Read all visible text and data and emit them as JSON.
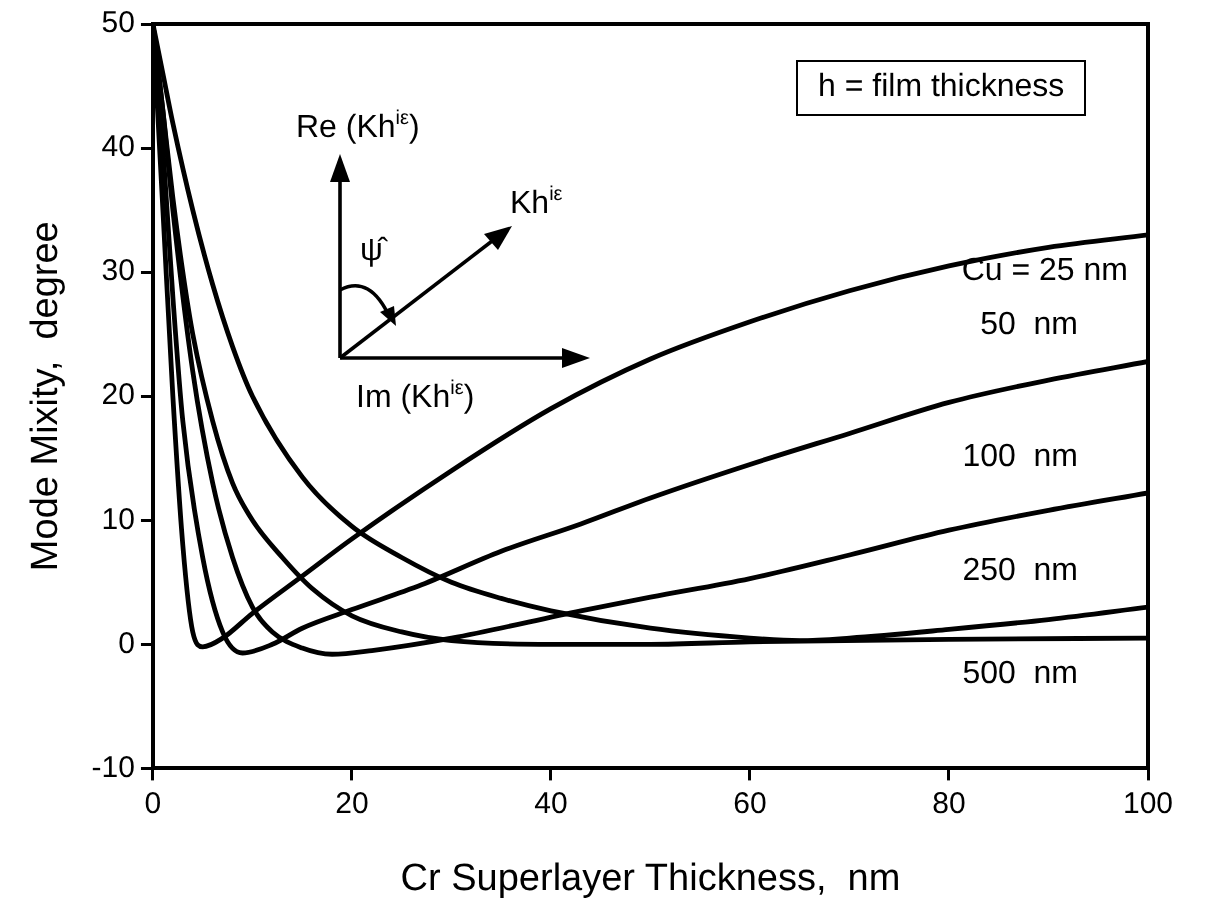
{
  "chart_data": {
    "type": "line",
    "xlabel": "Cr Superlayer Thickness,  nm",
    "ylabel": "Mode Mixity,  degree",
    "xlim": [
      0,
      100
    ],
    "xticks": [
      0,
      20,
      40,
      60,
      80,
      100
    ],
    "ylim": [
      -10,
      50
    ],
    "yticks": [
      -10,
      0,
      10,
      20,
      30,
      40,
      50
    ],
    "grid": false,
    "legend": false,
    "marker": "none",
    "line_style": "solid",
    "annotations": [
      "h = film thickness",
      "Re (Kh$^{iε}$)",
      "Kh$^{iε}$",
      "Im (Kh$^{iε}$)",
      "ψ̂"
    ],
    "series": [
      {
        "name": "Cu = 25 nm",
        "color": "#000000",
        "x": [
          0,
          1,
          2,
          3,
          4,
          5,
          7,
          10,
          15,
          20,
          30,
          40,
          50,
          60,
          70,
          80,
          90,
          100
        ],
        "values": [
          50,
          35,
          20,
          8,
          1,
          -0.2,
          0.5,
          2.5,
          5.5,
          8.5,
          14,
          19,
          23,
          26,
          28.5,
          30.5,
          32,
          33
        ]
      },
      {
        "name": "50  nm",
        "color": "#000000",
        "x": [
          0,
          1,
          2,
          3,
          5,
          7,
          9,
          12,
          15,
          20,
          27,
          35,
          43,
          50,
          60,
          70,
          80,
          90,
          100
        ],
        "values": [
          50,
          40,
          28,
          18,
          7,
          1,
          -0.7,
          0,
          1.3,
          2.8,
          4.8,
          7.5,
          9.7,
          11.8,
          14.5,
          17,
          19.5,
          21.3,
          22.8
        ]
      },
      {
        "name": "100  nm",
        "color": "#000000",
        "x": [
          0,
          1,
          2,
          4,
          6,
          8,
          10,
          12,
          15,
          18,
          22,
          30,
          43,
          50,
          60,
          70,
          80,
          90,
          100
        ],
        "values": [
          50,
          43,
          35,
          22,
          13,
          7,
          3,
          1,
          -0.3,
          -0.8,
          -0.5,
          0.5,
          2.7,
          3.8,
          5.3,
          7.2,
          9.2,
          10.8,
          12.2
        ]
      },
      {
        "name": "250  nm",
        "color": "#000000",
        "x": [
          0,
          1,
          2,
          4,
          6,
          8,
          10,
          15,
          20,
          25,
          30,
          35,
          40,
          50,
          60,
          65,
          70,
          80,
          90,
          100
        ],
        "values": [
          50,
          46,
          42,
          35,
          29,
          24,
          20,
          13.5,
          9.5,
          7,
          5,
          3.7,
          2.7,
          1.3,
          0.5,
          0.3,
          0.5,
          1.2,
          2,
          3
        ]
      },
      {
        "name": "500  nm",
        "color": "#000000",
        "x": [
          0,
          1,
          2,
          3,
          4,
          6,
          8,
          10,
          13,
          16,
          20,
          25,
          30,
          40,
          50,
          60,
          80,
          100
        ],
        "values": [
          50,
          43,
          36,
          30,
          25,
          18,
          13,
          10,
          7,
          4.5,
          2.3,
          1,
          0.3,
          0,
          0,
          0.2,
          0.4,
          0.5
        ]
      }
    ]
  }
}
